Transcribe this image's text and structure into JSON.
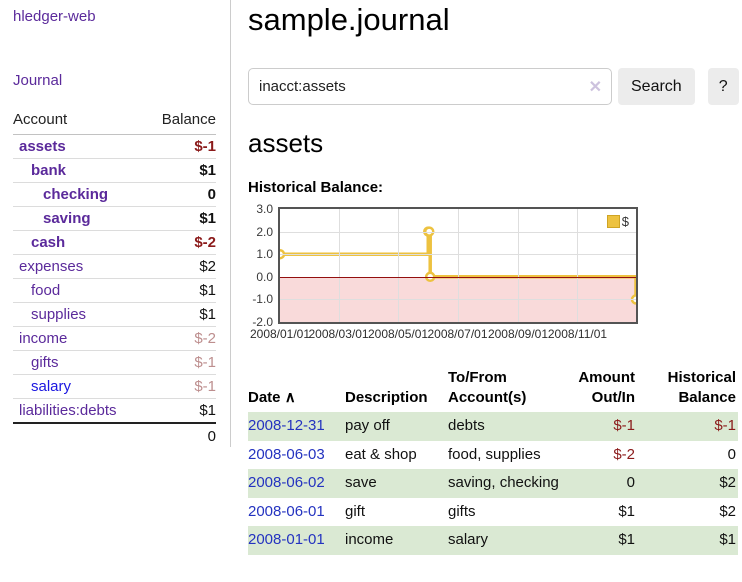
{
  "app": {
    "brand": "hledger-web",
    "nav": {
      "journal": "Journal"
    }
  },
  "sidebar": {
    "headers": {
      "account": "Account",
      "balance": "Balance"
    },
    "accounts": [
      {
        "name": "assets",
        "balance": "$-1",
        "level": 0,
        "bold": true,
        "balance_style": "neg-strong"
      },
      {
        "name": "bank",
        "balance": "$1",
        "level": 1,
        "bold": true,
        "balance_style": "pos"
      },
      {
        "name": "checking",
        "balance": "0",
        "level": 2,
        "bold": true,
        "balance_style": "pos"
      },
      {
        "name": "saving",
        "balance": "$1",
        "level": 2,
        "bold": true,
        "balance_style": "pos"
      },
      {
        "name": "cash",
        "balance": "$-2",
        "level": 1,
        "bold": true,
        "balance_style": "neg-strong"
      },
      {
        "name": "expenses",
        "balance": "$2",
        "level": 0,
        "bold": false,
        "balance_style": "pos"
      },
      {
        "name": "food",
        "balance": "$1",
        "level": 1,
        "bold": false,
        "balance_style": "pos"
      },
      {
        "name": "supplies",
        "balance": "$1",
        "level": 1,
        "bold": false,
        "balance_style": "pos"
      },
      {
        "name": "income",
        "balance": "$-2",
        "level": 0,
        "bold": false,
        "balance_style": "neg-faded"
      },
      {
        "name": "gifts",
        "balance": "$-1",
        "level": 1,
        "bold": false,
        "balance_style": "neg-faded"
      },
      {
        "name": "salary",
        "balance": "$-1",
        "level": 1,
        "bold": false,
        "balance_style": "neg-faded",
        "link_color": "blue"
      },
      {
        "name": "liabilities:debts",
        "balance": "$1",
        "level": 0,
        "bold": false,
        "balance_style": "pos"
      }
    ],
    "total": "0"
  },
  "main": {
    "title": "sample.journal",
    "search": {
      "value": "inacct:assets",
      "clear_icon": "✕",
      "search_label": "Search",
      "help_label": "?"
    },
    "account_heading": "assets",
    "chart_title": "Historical Balance:"
  },
  "chart_data": {
    "type": "line",
    "step": true,
    "title": "Historical Balance:",
    "x_domain": [
      "2008-01-01",
      "2008-12-31"
    ],
    "ylim": [
      -2,
      3
    ],
    "y_ticks": [
      "3.0",
      "2.0",
      "1.0",
      "0.0",
      "-1.0",
      "-2.0"
    ],
    "x_ticks": [
      {
        "label": "2008/01/01",
        "date": "2008-01-01"
      },
      {
        "label": "2008/03/01",
        "date": "2008-03-01"
      },
      {
        "label": "2008/05/01",
        "date": "2008-05-01"
      },
      {
        "label": "2008/07/01",
        "date": "2008-07-01"
      },
      {
        "label": "2008/09/01",
        "date": "2008-09-01"
      },
      {
        "label": "2008/11/01",
        "date": "2008-11-01"
      }
    ],
    "series": [
      {
        "name": "$",
        "color": "#edc240",
        "marker": "open-circle",
        "points": [
          {
            "date": "2008-01-01",
            "value": 1
          },
          {
            "date": "2008-06-01",
            "value": 2
          },
          {
            "date": "2008-06-02",
            "value": 2
          },
          {
            "date": "2008-06-03",
            "value": 0
          },
          {
            "date": "2008-12-31",
            "value": -1
          }
        ]
      }
    ],
    "legend": {
      "position": "top-right",
      "items": [
        {
          "label": "$",
          "color": "#edc240"
        }
      ]
    },
    "grid": true,
    "negative_region_color": "#f9dada",
    "zero_line_color": "#930f0f"
  },
  "register": {
    "headers": {
      "date": "Date",
      "sort_indicator": "∧",
      "description": "Description",
      "accounts": "To/From Account(s)",
      "amount": "Amount Out/In",
      "balance": "Historical Balance"
    },
    "rows": [
      {
        "date": "2008-12-31",
        "description": "pay off",
        "accounts": "debts",
        "amount": "$-1",
        "balance": "$-1",
        "striped": true
      },
      {
        "date": "2008-06-03",
        "description": "eat & shop",
        "accounts": "food, supplies",
        "amount": "$-2",
        "balance": "0",
        "striped": false
      },
      {
        "date": "2008-06-02",
        "description": "save",
        "accounts": "saving, checking",
        "amount": "0",
        "balance": "$2",
        "striped": true
      },
      {
        "date": "2008-06-01",
        "description": "gift",
        "accounts": "gifts",
        "amount": "$1",
        "balance": "$2",
        "striped": false
      },
      {
        "date": "2008-01-01",
        "description": "income",
        "accounts": "salary",
        "amount": "$1",
        "balance": "$1",
        "striped": true
      }
    ]
  },
  "colors": {
    "link_purple": "#5b2a9b",
    "link_blue": "#2433c0",
    "negative_strong": "#8b1a1a",
    "negative_faded": "#bd8e8e",
    "row_stripe_green": "#dae9d3",
    "chart_series_yellow": "#edc240",
    "chart_negative_pink": "#f9dada",
    "chart_zero_line": "#930f0f"
  }
}
